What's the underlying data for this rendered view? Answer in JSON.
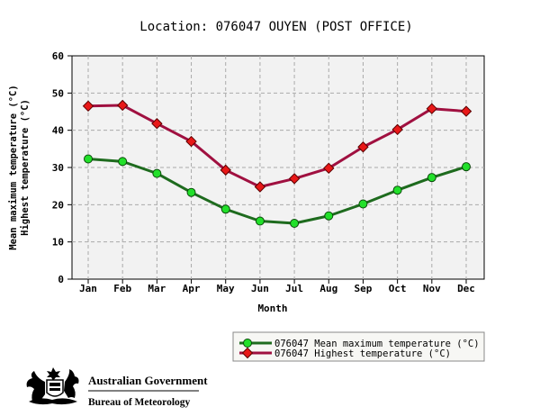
{
  "chart_data": {
    "type": "line",
    "title": "Location: 076047 OUYEN (POST OFFICE)",
    "xlabel": "Month",
    "ylabel_lines": [
      "Mean maximum temperature (°C)",
      "Highest temperature (°C)"
    ],
    "categories": [
      "Jan",
      "Feb",
      "Mar",
      "Apr",
      "May",
      "Jun",
      "Jul",
      "Aug",
      "Sep",
      "Oct",
      "Nov",
      "Dec"
    ],
    "ylim": [
      0,
      60
    ],
    "yticks": [
      0,
      10,
      20,
      30,
      40,
      50,
      60
    ],
    "grid": true,
    "legend_position": "bottom-right",
    "series": [
      {
        "name": "076047 Mean maximum temperature (°C)",
        "values": [
          32.3,
          31.6,
          28.4,
          23.3,
          18.8,
          15.6,
          15.0,
          17.0,
          20.2,
          23.9,
          27.3,
          30.2
        ],
        "line_color": "#1e6b1e",
        "marker_color": "#22e02a",
        "marker": "circle"
      },
      {
        "name": "076047 Highest temperature (°C)",
        "values": [
          46.5,
          46.7,
          41.8,
          37.0,
          29.3,
          24.8,
          27.0,
          29.8,
          35.5,
          40.2,
          45.8,
          45.1
        ],
        "line_color": "#a01040",
        "marker_color": "#e81818",
        "marker": "diamond"
      }
    ]
  },
  "branding": {
    "line1": "Australian Government",
    "line2": "Bureau of Meteorology"
  },
  "colors": {
    "plot_background": "#f2f2f2",
    "grid": "#aaaaaa",
    "legend_background": "#f7f7f4",
    "text": "#000000"
  }
}
